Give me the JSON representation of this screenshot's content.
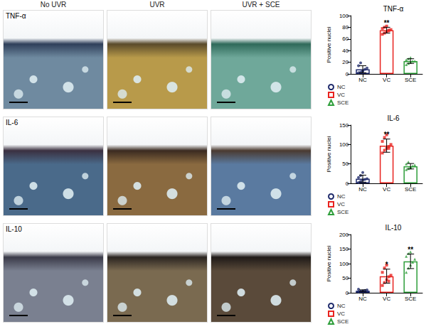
{
  "figure": {
    "columns": [
      "No UVR",
      "UVR",
      "UVR + SCE"
    ],
    "rows": [
      "TNF-α",
      "IL-6",
      "IL-10"
    ]
  },
  "chart_data": [
    {
      "type": "bar",
      "title": "TNF-α",
      "y_label": "Positive nuclei",
      "categories": [
        "NC",
        "VC",
        "SCE"
      ],
      "ylim": [
        0,
        100
      ],
      "yticks": [
        0,
        20,
        40,
        60,
        80,
        100
      ],
      "grid": false,
      "legend": "bottom-left",
      "series": [
        {
          "name": "NC",
          "color": "#1f2a6b",
          "marker": "circle",
          "values": [
            8,
            null,
            null
          ],
          "errors": [
            6,
            null,
            null
          ],
          "points": [
            [
              2,
              3,
              5,
              8,
              10,
              14,
              19,
              5
            ],
            null,
            null
          ],
          "annotations": [
            null,
            null,
            null
          ]
        },
        {
          "name": "VC",
          "color": "#e8231f",
          "marker": "square",
          "values": [
            null,
            75,
            null
          ],
          "errors": [
            null,
            5,
            null
          ],
          "points": [
            null,
            [
              68,
              70,
              72,
              74,
              76,
              78,
              80,
              82,
              75
            ],
            null
          ],
          "annotations": [
            null,
            "**",
            null
          ]
        },
        {
          "name": "SCE",
          "color": "#2e9e3a",
          "marker": "triangle",
          "values": [
            null,
            null,
            22
          ],
          "errors": [
            null,
            null,
            4
          ],
          "points": [
            null,
            null,
            [
              16,
              18,
              20,
              22,
              22,
              24,
              26,
              28
            ]
          ],
          "annotations": [
            null,
            null,
            null
          ]
        }
      ]
    },
    {
      "type": "bar",
      "title": "IL-6",
      "y_label": "Positive nuclei",
      "categories": [
        "NC",
        "VC",
        "SCE"
      ],
      "ylim": [
        0,
        150
      ],
      "yticks": [
        0,
        50,
        100,
        150
      ],
      "grid": false,
      "legend": "bottom-left",
      "series": [
        {
          "name": "NC",
          "color": "#1f2a6b",
          "marker": "circle",
          "values": [
            12,
            null,
            null
          ],
          "errors": [
            9,
            null,
            null
          ],
          "points": [
            [
              2,
              5,
              8,
              10,
              12,
              15,
              20,
              28
            ],
            null,
            null
          ],
          "annotations": [
            null,
            null,
            null
          ]
        },
        {
          "name": "VC",
          "color": "#e8231f",
          "marker": "square",
          "values": [
            null,
            97,
            null
          ],
          "errors": [
            null,
            17,
            null
          ],
          "points": [
            null,
            [
              78,
              85,
              90,
              95,
              100,
              108,
              118,
              125,
              90
            ],
            null
          ],
          "annotations": [
            null,
            "**",
            null
          ]
        },
        {
          "name": "SCE",
          "color": "#2e9e3a",
          "marker": "triangle",
          "values": [
            null,
            null,
            44
          ],
          "errors": [
            null,
            null,
            7
          ],
          "points": [
            null,
            null,
            [
              35,
              38,
              42,
              45,
              47,
              50,
              55,
              40
            ]
          ],
          "annotations": [
            null,
            null,
            null
          ]
        }
      ]
    },
    {
      "type": "bar",
      "title": "IL-10",
      "y_label": "Positive nuclei",
      "categories": [
        "NC",
        "VC",
        "SCE"
      ],
      "ylim": [
        0,
        200
      ],
      "yticks": [
        0,
        50,
        100,
        150,
        200
      ],
      "grid": false,
      "legend": "bottom-left",
      "series": [
        {
          "name": "NC",
          "color": "#1f2a6b",
          "marker": "circle",
          "values": [
            7,
            null,
            null
          ],
          "errors": [
            3,
            null,
            null
          ],
          "points": [
            [
              3,
              5,
              6,
              8,
              10,
              12,
              4
            ],
            null,
            null
          ],
          "annotations": [
            null,
            null,
            null
          ]
        },
        {
          "name": "VC",
          "color": "#e8231f",
          "marker": "square",
          "values": [
            null,
            57,
            null
          ],
          "errors": [
            null,
            24,
            null
          ],
          "points": [
            null,
            [
              25,
              35,
              45,
              55,
              60,
              70,
              85,
              95,
              40
            ],
            null
          ],
          "annotations": [
            null,
            "*",
            null
          ]
        },
        {
          "name": "SCE",
          "color": "#2e9e3a",
          "marker": "triangle",
          "values": [
            null,
            null,
            108
          ],
          "errors": [
            null,
            null,
            25
          ],
          "points": [
            null,
            null,
            [
              70,
              85,
              95,
              105,
              115,
              125,
              135,
              140
            ]
          ],
          "annotations": [
            null,
            null,
            "**"
          ]
        }
      ]
    }
  ]
}
